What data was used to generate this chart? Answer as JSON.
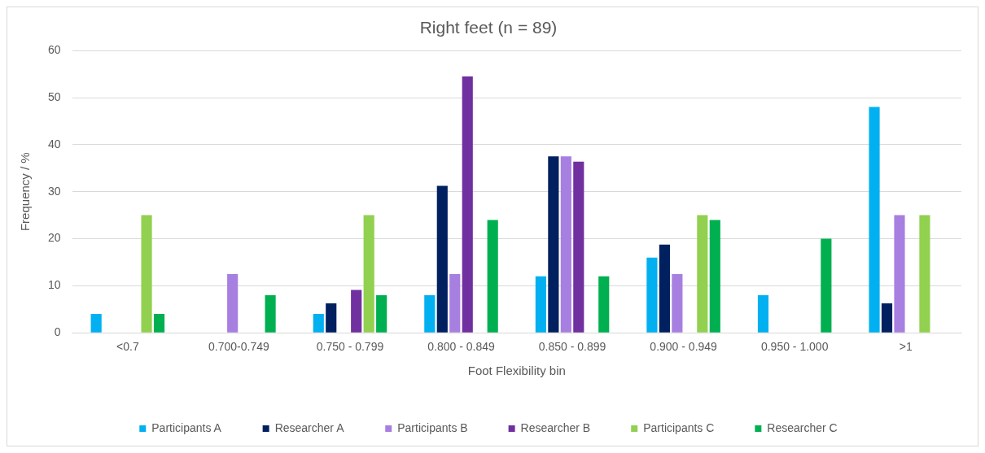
{
  "chart_data": {
    "type": "bar",
    "title": "Right feet (n = 89)",
    "xlabel": "Foot Flexibility bin",
    "ylabel": "Frequency / %",
    "categories": [
      "<0.7",
      "0.700-0.749",
      "0.750 - 0.799",
      "0.800 - 0.849",
      "0.850 - 0.899",
      "0.900 - 0.949",
      "0.950 - 1.000",
      ">1"
    ],
    "series": [
      {
        "name": "Participants A",
        "color": "#00b0f0",
        "values": [
          4,
          0,
          4,
          8,
          12,
          16,
          8,
          48
        ]
      },
      {
        "name": "Researcher A",
        "color": "#002060",
        "values": [
          0,
          0,
          6.25,
          31.25,
          37.5,
          18.75,
          0,
          6.25
        ]
      },
      {
        "name": "Participants B",
        "color": "#a77fe0",
        "values": [
          0,
          12.5,
          0,
          12.5,
          37.5,
          12.5,
          0,
          25
        ]
      },
      {
        "name": "Researcher B",
        "color": "#7030a0",
        "values": [
          0,
          0,
          9.1,
          54.5,
          36.4,
          0,
          0,
          0
        ]
      },
      {
        "name": "Participants C",
        "color": "#92d050",
        "values": [
          25,
          0,
          25,
          0,
          0,
          25,
          0,
          25
        ]
      },
      {
        "name": "Researcher C",
        "color": "#00b050",
        "values": [
          4,
          8,
          8,
          24,
          12,
          24,
          20,
          0
        ]
      }
    ],
    "ylim": [
      0,
      60
    ],
    "yticks": [
      0,
      10,
      20,
      30,
      40,
      50,
      60
    ],
    "grid": "y",
    "legend": "bottom"
  }
}
